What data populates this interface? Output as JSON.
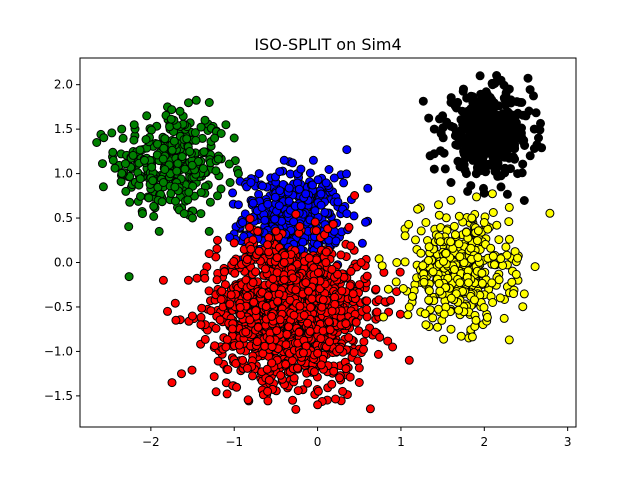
{
  "chart_data": {
    "type": "scatter",
    "title": "ISO-SPLIT on Sim4",
    "xlabel": "",
    "ylabel": "",
    "xlim": [
      -2.85,
      3.1
    ],
    "ylim": [
      -1.85,
      2.3
    ],
    "grid": false,
    "legend": "none",
    "x_ticks": [
      -2,
      -1,
      0,
      1,
      2,
      3
    ],
    "y_ticks": [
      -1.5,
      -1.0,
      -0.5,
      0.0,
      0.5,
      1.0,
      1.5,
      2.0
    ],
    "x_tick_labels": [
      "−2",
      "−1",
      "0",
      "1",
      "2",
      "3"
    ],
    "y_tick_labels": [
      "−1.5",
      "−1.0",
      "−0.5",
      "0.0",
      "0.5",
      "1.0",
      "1.5",
      "2.0"
    ],
    "series": [
      {
        "color": "#008000",
        "count": 300,
        "center": [
          -1.75,
          1.1
        ],
        "spread": [
          0.33,
          0.3
        ],
        "x": [
          -2.65,
          -2.35,
          -2.2,
          -2.05,
          -1.8,
          -1.75,
          -1.65,
          -1.35,
          -1.1,
          -1.0,
          -0.95,
          -1.05,
          -1.2,
          -1.4,
          -1.5,
          -1.6,
          -1.9,
          -2.1,
          -2.3,
          -2.45,
          -1.3,
          -1.85
        ],
        "y": [
          1.35,
          1.5,
          1.55,
          1.65,
          1.75,
          1.72,
          1.7,
          1.6,
          1.55,
          1.4,
          1.0,
          0.9,
          0.75,
          0.55,
          0.5,
          0.55,
          0.35,
          0.55,
          0.8,
          1.15,
          0.35,
          0.9
        ]
      },
      {
        "color": "#0000ff",
        "count": 400,
        "center": [
          -0.3,
          0.5
        ],
        "spread": [
          0.3,
          0.25
        ],
        "x": [
          -0.95,
          -0.85,
          -0.8,
          -0.7,
          -0.4,
          -0.3,
          -0.2,
          -0.05,
          0.2,
          0.35,
          0.3,
          0.35,
          0.2,
          0.0,
          -0.2,
          -0.5,
          -0.7,
          -0.9
        ],
        "y": [
          0.65,
          0.85,
          0.9,
          1.0,
          1.15,
          1.12,
          1.05,
          1.15,
          0.95,
          1.27,
          0.6,
          0.55,
          0.35,
          0.2,
          0.15,
          0.25,
          0.35,
          0.45
        ]
      },
      {
        "color": "#ff0000",
        "count": 1500,
        "center": [
          -0.3,
          -0.55
        ],
        "spread": [
          0.45,
          0.38
        ],
        "x": [
          -1.85,
          -1.8,
          -1.7,
          -1.55,
          -1.3,
          -1.2,
          -1.0,
          -0.8,
          -0.6,
          -0.4,
          -0.1,
          0.1,
          0.4,
          0.7,
          0.9,
          1.1,
          0.5,
          0.3,
          0.0,
          -0.3,
          -0.6,
          -0.9,
          -1.1,
          -1.4
        ],
        "y": [
          -0.2,
          -0.55,
          -0.65,
          -0.2,
          0.1,
          0.25,
          0.22,
          0.15,
          0.2,
          0.0,
          0.05,
          0.0,
          -0.1,
          -0.3,
          -0.95,
          -1.1,
          -1.35,
          -1.45,
          -1.6,
          -1.55,
          -1.45,
          -1.1,
          -0.95,
          -0.7
        ]
      },
      {
        "color": "#ffff00",
        "count": 400,
        "center": [
          1.7,
          -0.1
        ],
        "spread": [
          0.3,
          0.3
        ],
        "x": [
          0.85,
          0.95,
          1.05,
          1.2,
          1.3,
          1.45,
          1.6,
          1.7,
          1.85,
          2.0,
          2.15,
          2.3,
          2.4,
          2.35,
          2.1,
          1.9,
          1.6,
          1.3,
          1.1,
          2.3
        ],
        "y": [
          -0.3,
          0.0,
          0.3,
          0.6,
          0.45,
          0.65,
          0.7,
          0.52,
          0.5,
          0.45,
          0.42,
          0.62,
          0.05,
          -0.35,
          -0.45,
          -0.65,
          -0.75,
          -0.7,
          -0.5,
          -0.87
        ]
      },
      {
        "color": "#000000",
        "count": 400,
        "center": [
          2.05,
          1.45
        ],
        "spread": [
          0.26,
          0.22
        ],
        "x": [
          1.35,
          1.4,
          1.5,
          1.6,
          1.75,
          1.95,
          2.1,
          2.2,
          2.3,
          2.45,
          2.6,
          2.65,
          2.55,
          2.4,
          2.2,
          2.0,
          1.8,
          1.6,
          1.4
        ],
        "y": [
          1.2,
          1.5,
          1.65,
          1.8,
          1.95,
          2.1,
          2.0,
          2.05,
          1.95,
          1.8,
          1.5,
          1.4,
          1.2,
          1.0,
          0.85,
          0.78,
          0.8,
          0.9,
          1.05
        ]
      }
    ]
  }
}
